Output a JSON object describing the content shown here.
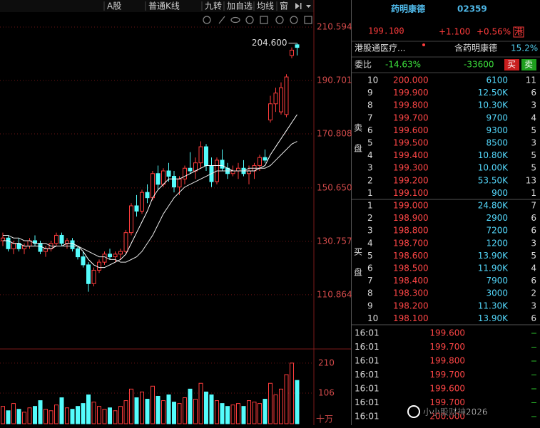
{
  "toolbar": {
    "items": [
      "A股",
      "普通K线",
      "九转",
      "加自选",
      "均线",
      "窗"
    ]
  },
  "kline": {
    "type": "candlestick",
    "ylim": [
      91.2,
      215.9
    ],
    "yticks": [
      110.864,
      130.757,
      {
        "value": 150.65,
        "label": "150.650"
      },
      170.808,
      190.701,
      210.594
    ],
    "up_color": "#ff3c3c",
    "down_color": "#54fcfc",
    "grid": true,
    "open": [
      131,
      132,
      128,
      130,
      128,
      129,
      131,
      130,
      127,
      128,
      130,
      133,
      130,
      131,
      128,
      125,
      122,
      115,
      120,
      123,
      126,
      125,
      126,
      127,
      134,
      144,
      142,
      149,
      147,
      156,
      152,
      157,
      155,
      151,
      154,
      158,
      157,
      160,
      166,
      159,
      153,
      161,
      158,
      156,
      157,
      158,
      156,
      157,
      159,
      162,
      176,
      182,
      179,
      178,
      200,
      204
    ],
    "high": [
      134,
      133,
      131,
      132,
      130,
      132,
      133,
      131,
      129,
      131,
      134,
      134,
      132,
      132,
      129,
      127,
      123,
      121,
      124,
      127,
      128,
      127,
      128,
      135,
      145,
      148,
      150,
      152,
      157,
      159,
      158,
      160,
      157,
      155,
      159,
      164,
      162,
      168,
      167,
      162,
      162,
      165,
      160,
      159,
      160,
      161,
      159,
      160,
      163,
      165,
      185,
      188,
      190,
      193,
      203,
      204.6
    ],
    "low": [
      129,
      127,
      126,
      127,
      126,
      128,
      129,
      126,
      125,
      127,
      129,
      129,
      128,
      127,
      124,
      121,
      112,
      114,
      119,
      122,
      124,
      123,
      124,
      126,
      133,
      140,
      141,
      145,
      146,
      150,
      151,
      153,
      149,
      148,
      152,
      156,
      154,
      158,
      157,
      151,
      152,
      157,
      154,
      155,
      154,
      155,
      152,
      154,
      157,
      160,
      175,
      179,
      178,
      177,
      199,
      200
    ],
    "close": [
      132,
      128,
      130,
      128,
      129,
      131,
      130,
      127,
      128,
      130,
      133,
      130,
      131,
      128,
      125,
      122,
      115,
      120,
      123,
      126,
      125,
      126,
      127,
      134,
      144,
      142,
      149,
      147,
      156,
      152,
      157,
      155,
      151,
      154,
      158,
      157,
      160,
      166,
      159,
      153,
      161,
      158,
      156,
      157,
      158,
      156,
      157,
      159,
      162,
      161,
      182,
      186,
      188,
      192,
      202,
      203
    ],
    "ma": [
      {
        "color": "#ffffff",
        "values": [
          131,
          131,
          130,
          130,
          129,
          129,
          129,
          129,
          128,
          128,
          129,
          129,
          130,
          130,
          129,
          127,
          124,
          122,
          121,
          121,
          122,
          123,
          124,
          126,
          130,
          134,
          138,
          142,
          147,
          150,
          152,
          154,
          154,
          154,
          155,
          156,
          157,
          158,
          159,
          159,
          159,
          159,
          158,
          157,
          157,
          157,
          157,
          157,
          158,
          159,
          163,
          166,
          169,
          172,
          175,
          178
        ]
      },
      {
        "color": "#e8e8e8",
        "values": [
          133,
          133,
          132,
          132,
          131,
          131,
          130,
          130,
          130,
          129,
          129,
          129,
          129,
          129,
          129,
          128,
          127,
          126,
          125,
          125,
          124,
          124,
          123,
          123,
          124,
          125,
          127,
          130,
          133,
          137,
          141,
          144,
          147,
          149,
          151,
          152,
          153,
          154,
          155,
          156,
          157,
          157,
          157,
          157,
          157,
          157,
          158,
          158,
          158,
          158,
          159,
          161,
          163,
          165,
          167,
          168
        ]
      }
    ],
    "high_label": {
      "value": 204.6,
      "label": "204.600"
    }
  },
  "volume": {
    "ylim": [
      0,
      254
    ],
    "yticks": [
      106,
      210
    ],
    "unit": "十万",
    "values": [
      60,
      45,
      70,
      50,
      40,
      55,
      60,
      80,
      50,
      45,
      65,
      90,
      55,
      50,
      60,
      70,
      100,
      75,
      60,
      50,
      55,
      45,
      60,
      80,
      120,
      90,
      110,
      85,
      130,
      95,
      80,
      100,
      75,
      70,
      90,
      120,
      85,
      140,
      110,
      100,
      80,
      70,
      60,
      65,
      70,
      60,
      80,
      75,
      70,
      85,
      140,
      100,
      120,
      170,
      210,
      150
    ]
  },
  "quote": {
    "name": "药明康德",
    "code": "02359",
    "price": "199.100",
    "change": "+1.100",
    "change_pct": "+0.56%",
    "market": "港",
    "sector": "港股通医疗...",
    "related": "含药明康德",
    "related_pct": "15.2%",
    "ratio_label": "委比",
    "ratio": "-14.63%",
    "diff": "-33600",
    "buttons": [
      "买",
      "卖"
    ]
  },
  "order_book": {
    "sell_label": [
      "卖",
      "盘"
    ],
    "sell": [
      [
        "10",
        "200.000",
        "6100",
        "11"
      ],
      [
        "9",
        "199.900",
        "12.50K",
        "6"
      ],
      [
        "8",
        "199.800",
        "10.30K",
        "3"
      ],
      [
        "7",
        "199.700",
        "9700",
        "4"
      ],
      [
        "6",
        "199.600",
        "9300",
        "5"
      ],
      [
        "5",
        "199.500",
        "8500",
        "3"
      ],
      [
        "4",
        "199.400",
        "10.80K",
        "5"
      ],
      [
        "3",
        "199.300",
        "10.00K",
        "5"
      ],
      [
        "2",
        "199.200",
        "53.50K",
        "13"
      ],
      [
        "1",
        "199.100",
        "900",
        "1"
      ]
    ],
    "buy_label": [
      "买",
      "盘"
    ],
    "buy": [
      [
        "1",
        "199.000",
        "24.80K",
        "7"
      ],
      [
        "2",
        "198.900",
        "2900",
        "6"
      ],
      [
        "3",
        "198.800",
        "7200",
        "6"
      ],
      [
        "4",
        "198.700",
        "1200",
        "3"
      ],
      [
        "5",
        "198.600",
        "13.90K",
        "5"
      ],
      [
        "6",
        "198.500",
        "11.90K",
        "4"
      ],
      [
        "7",
        "198.400",
        "7900",
        "6"
      ],
      [
        "8",
        "198.300",
        "3000",
        "2"
      ],
      [
        "9",
        "198.200",
        "11.30K",
        "3"
      ],
      [
        "10",
        "198.100",
        "13.90K",
        "6"
      ]
    ]
  },
  "trades": [
    [
      "16:01",
      "199.600"
    ],
    [
      "16:01",
      "199.700"
    ],
    [
      "16:01",
      "199.800"
    ],
    [
      "16:01",
      "199.700"
    ],
    [
      "16:01",
      "199.600"
    ],
    [
      "16:01",
      "199.700"
    ],
    [
      "16:01",
      "200.000"
    ]
  ],
  "watermark": "小小股财神2026"
}
